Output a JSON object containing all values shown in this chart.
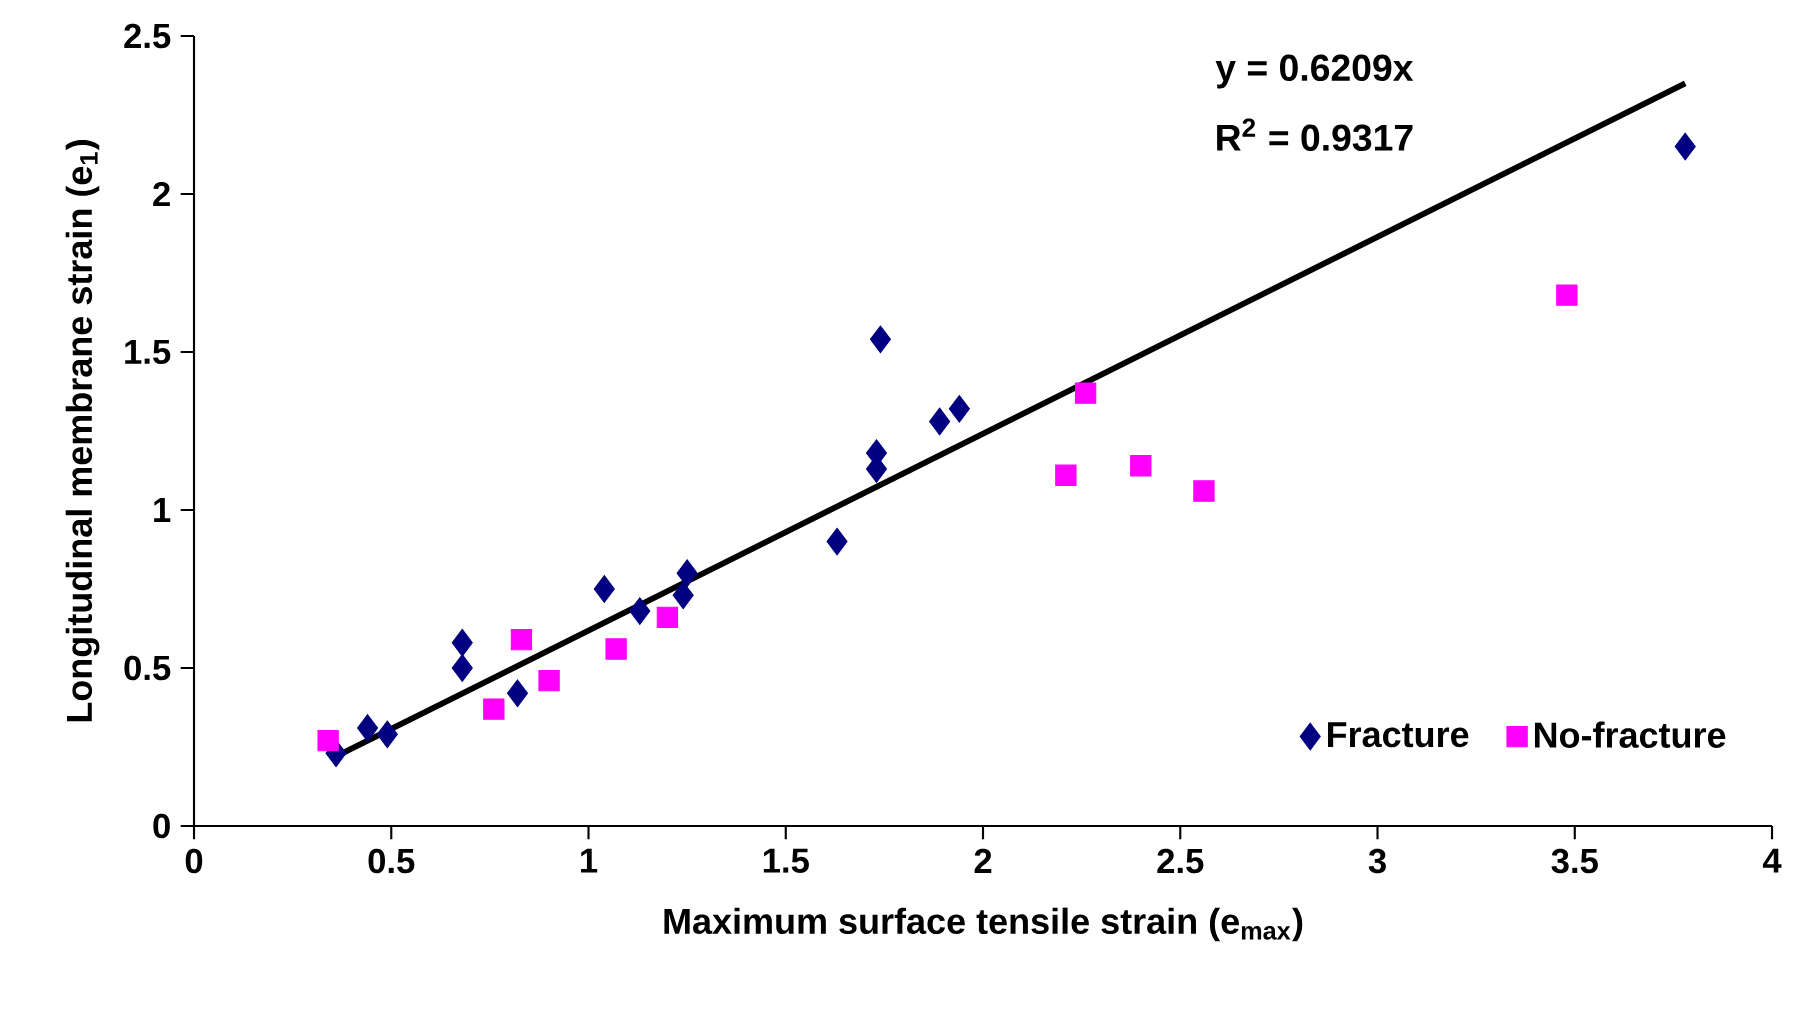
{
  "chart_data": {
    "type": "scatter",
    "xlabel": "Maximum surface tensile strain (e$_{max}$)",
    "ylabel": "Longitudinal membrane strain (e$_{1}$)",
    "xlim": [
      0,
      4
    ],
    "ylim": [
      0,
      2.5
    ],
    "xticks": [
      0,
      0.5,
      1,
      1.5,
      2,
      2.5,
      3,
      3.5,
      4
    ],
    "yticks": [
      0,
      0.5,
      1,
      1.5,
      2,
      2.5
    ],
    "grid": false,
    "legend": "bottom right",
    "annotations": [
      "y = 0.6209x",
      "R$^{2}$ = 0.9317"
    ],
    "series": [
      {
        "name": "Fracture",
        "marker": "diamond",
        "color": "#000080",
        "x": [
          0.36,
          0.44,
          0.49,
          0.68,
          0.68,
          0.82,
          1.04,
          1.13,
          1.24,
          1.25,
          1.63,
          1.73,
          1.73,
          1.74,
          1.89,
          1.94,
          3.78
        ],
        "values": [
          0.23,
          0.31,
          0.29,
          0.58,
          0.5,
          0.42,
          0.75,
          0.68,
          0.73,
          0.8,
          0.9,
          1.18,
          1.13,
          1.54,
          1.28,
          1.32,
          2.15
        ]
      },
      {
        "name": "No-fracture",
        "marker": "square",
        "color": "#ff00ff",
        "x": [
          0.34,
          0.76,
          0.83,
          0.9,
          1.07,
          1.2,
          2.21,
          2.26,
          2.4,
          2.56,
          3.48
        ],
        "values": [
          0.27,
          0.37,
          0.59,
          0.46,
          0.56,
          0.66,
          1.11,
          1.37,
          1.14,
          1.06,
          1.68
        ]
      },
      {
        "type": "line",
        "marker": "none",
        "color": "#000000",
        "x": [
          0.36,
          3.78
        ],
        "values": [
          0.22,
          2.35
        ]
      }
    ]
  }
}
